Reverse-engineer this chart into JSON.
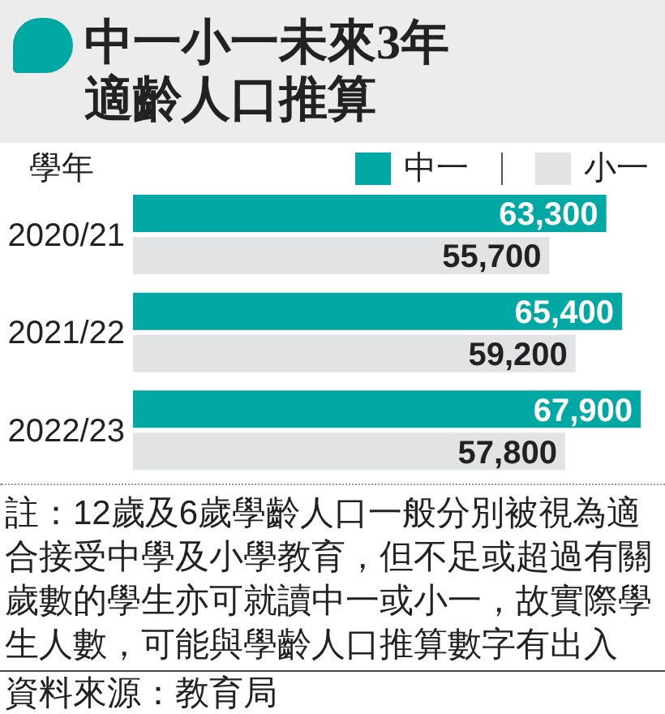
{
  "chart_data": {
    "type": "bar",
    "orientation": "horizontal",
    "title": "中一小一未來3年適齡人口推算",
    "ylabel": "學年",
    "categories": [
      "2020/21",
      "2021/22",
      "2022/23"
    ],
    "series": [
      {
        "name": "中一",
        "color": "#00a8a3",
        "values": [
          63300,
          65400,
          67900
        ],
        "value_labels": [
          "63,300",
          "65,400",
          "67,900"
        ]
      },
      {
        "name": "小一",
        "color": "#e2e3e4",
        "values": [
          55700,
          59200,
          57800
        ],
        "value_labels": [
          "55,700",
          "59,200",
          "57,800"
        ]
      }
    ],
    "legend": "top right",
    "tick_labels": "y",
    "annotations": [
      "註：12歲及6歲學齡人口一般分別被視為適合接受中學及小學教育，但不足或超過有關歲數的學生亦可就讀中一或小一，故實際學生人數，可能與學齡人口推算數字有出入",
      "資料來源：教育局"
    ]
  }
}
